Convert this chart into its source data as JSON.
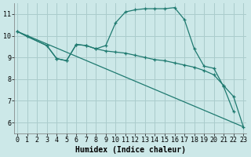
{
  "xlabel": "Humidex (Indice chaleur)",
  "background_color": "#cce8e8",
  "grid_color": "#aacccc",
  "line_color": "#1f7a70",
  "xlim": [
    -0.3,
    23.3
  ],
  "ylim": [
    5.5,
    11.5
  ],
  "yticks": [
    6,
    7,
    8,
    9,
    10,
    11
  ],
  "xticks": [
    0,
    1,
    2,
    3,
    4,
    5,
    6,
    7,
    8,
    9,
    10,
    11,
    12,
    13,
    14,
    15,
    16,
    17,
    18,
    19,
    20,
    21,
    22,
    23
  ],
  "curve1_x": [
    0,
    1,
    3,
    4,
    5,
    6,
    7,
    8,
    9,
    10,
    11,
    12,
    13,
    14,
    15,
    16,
    17,
    18,
    19,
    20,
    21,
    22
  ],
  "curve1_y": [
    10.2,
    9.97,
    9.55,
    8.95,
    8.85,
    9.6,
    9.55,
    9.4,
    9.55,
    10.6,
    11.1,
    11.2,
    11.25,
    11.25,
    11.25,
    11.3,
    10.75,
    9.4,
    8.6,
    8.5,
    7.65,
    6.5
  ],
  "curve2_x": [
    0,
    1,
    3,
    4,
    5,
    6,
    7,
    8,
    9,
    10,
    11,
    12,
    13,
    14,
    15,
    16,
    17,
    18,
    19,
    20,
    21,
    22,
    23
  ],
  "curve2_y": [
    10.2,
    9.97,
    9.55,
    8.95,
    8.85,
    9.6,
    9.55,
    9.4,
    9.3,
    9.25,
    9.2,
    9.1,
    9.0,
    8.9,
    8.85,
    8.75,
    8.65,
    8.55,
    8.4,
    8.2,
    7.7,
    7.2,
    5.8
  ],
  "line3_x": [
    0,
    23
  ],
  "line3_y": [
    10.2,
    5.8
  ],
  "tick_fontsize": 6,
  "xlabel_fontsize": 7
}
